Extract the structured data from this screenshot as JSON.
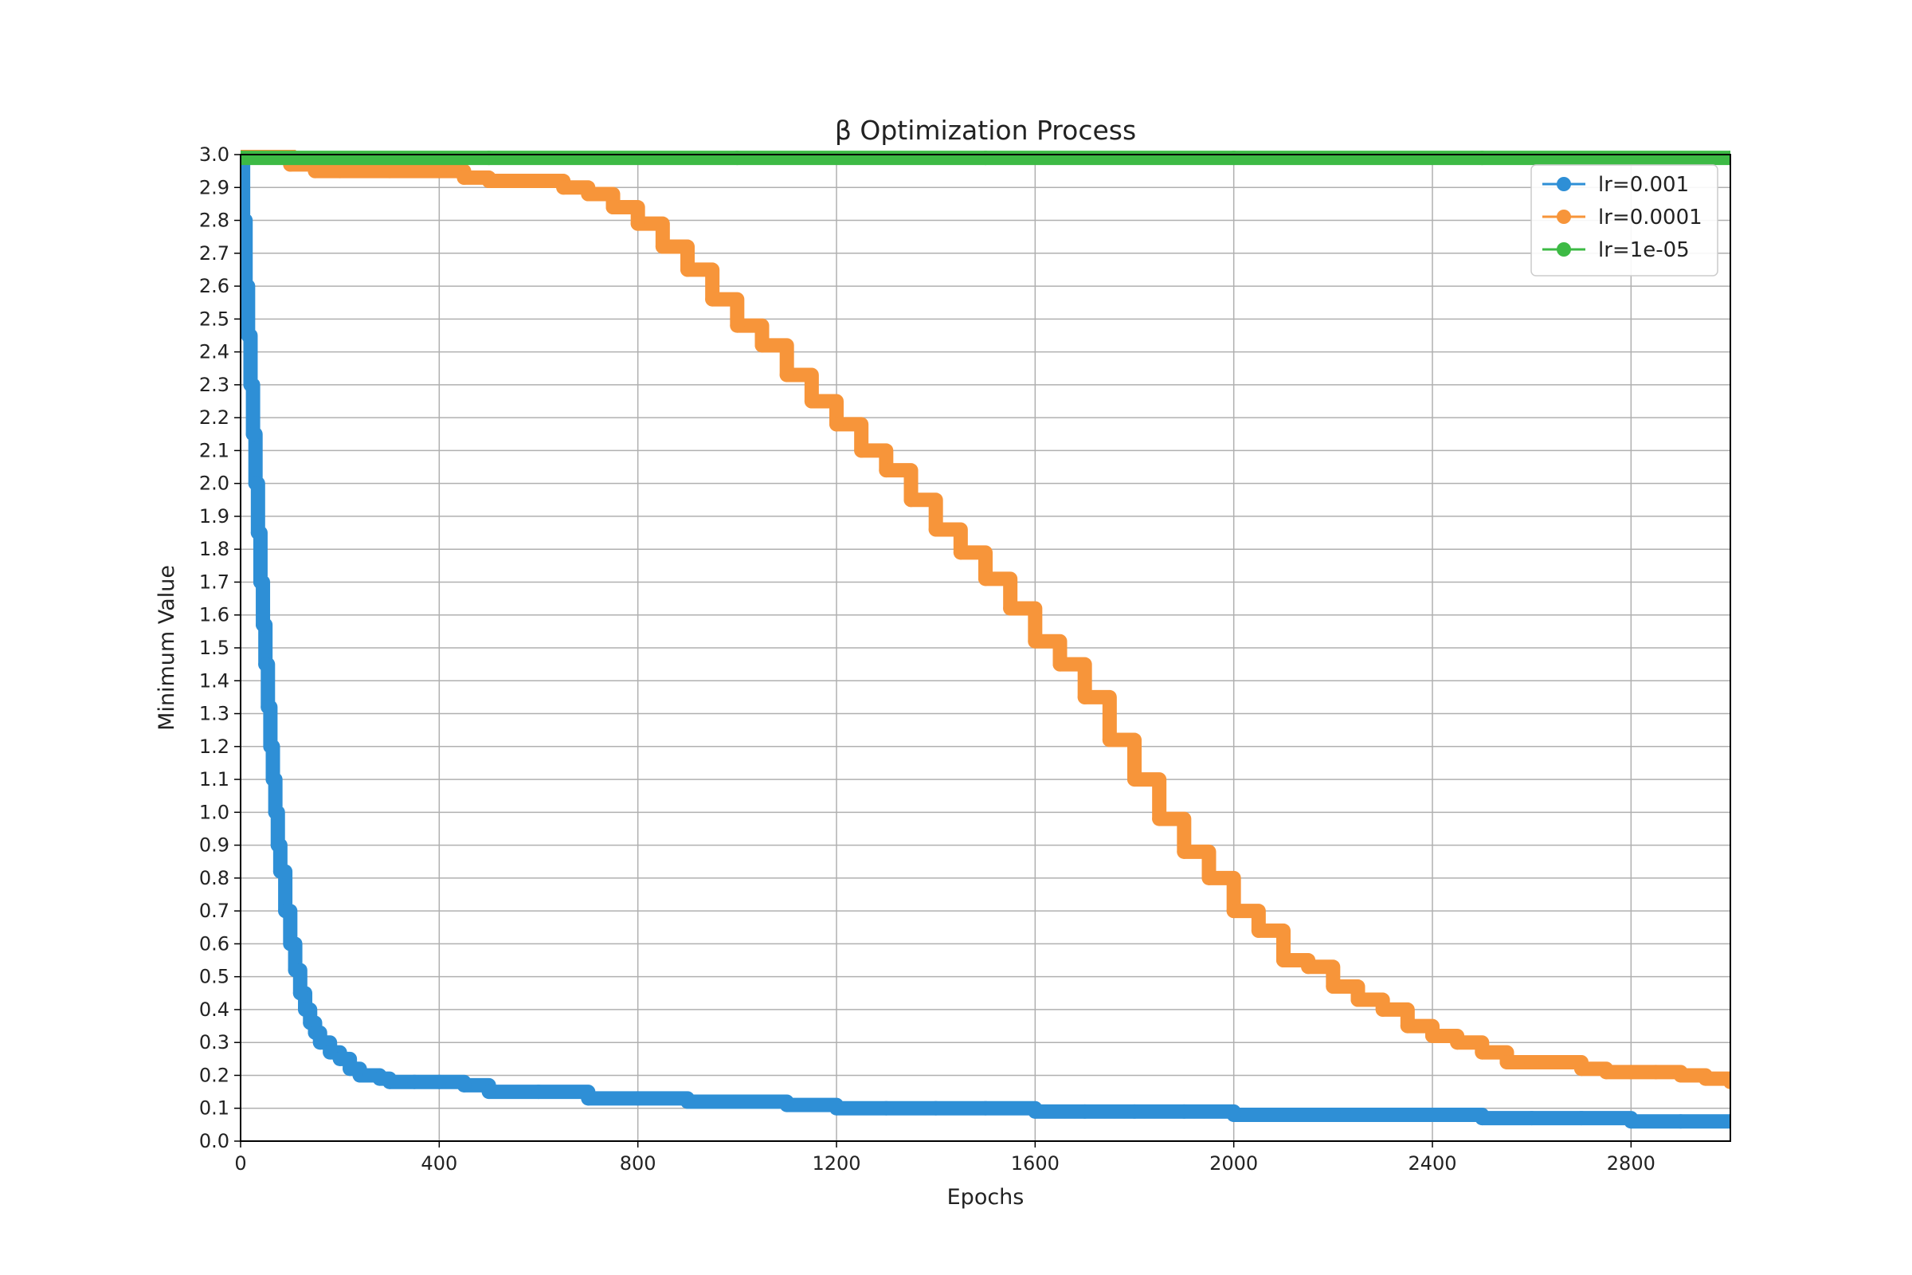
{
  "chart_data": {
    "type": "line",
    "title": "β Optimization Process",
    "xlabel": "Epochs",
    "ylabel": "Minimum Value",
    "xlim": [
      0,
      3000
    ],
    "ylim": [
      0.0,
      3.0
    ],
    "xticks": [
      0,
      400,
      800,
      1200,
      1600,
      2000,
      2400,
      2800
    ],
    "yticks": [
      0.0,
      0.1,
      0.2,
      0.3,
      0.4,
      0.5,
      0.6,
      0.7,
      0.8,
      0.9,
      1.0,
      1.1,
      1.2,
      1.3,
      1.4,
      1.5,
      1.6,
      1.7,
      1.8,
      1.9,
      2.0,
      2.1,
      2.2,
      2.3,
      2.4,
      2.5,
      2.6,
      2.7,
      2.8,
      2.9,
      3.0
    ],
    "grid": true,
    "legend_position": "top-right",
    "series": [
      {
        "name": "lr=0.001",
        "color": "#2e8fd6",
        "marker": "circle",
        "x": [
          0,
          5,
          10,
          15,
          20,
          25,
          30,
          35,
          40,
          45,
          50,
          55,
          60,
          65,
          70,
          75,
          80,
          90,
          100,
          110,
          120,
          130,
          140,
          150,
          160,
          180,
          200,
          220,
          240,
          260,
          280,
          300,
          350,
          400,
          450,
          500,
          600,
          700,
          800,
          900,
          1000,
          1100,
          1200,
          1300,
          1400,
          1500,
          1600,
          1700,
          1800,
          1900,
          2000,
          2100,
          2200,
          2300,
          2400,
          2500,
          2600,
          2700,
          2800,
          2900,
          3000
        ],
        "y": [
          2.98,
          2.8,
          2.6,
          2.45,
          2.3,
          2.15,
          2.0,
          1.85,
          1.7,
          1.57,
          1.45,
          1.32,
          1.2,
          1.1,
          1.0,
          0.9,
          0.82,
          0.7,
          0.6,
          0.52,
          0.45,
          0.4,
          0.36,
          0.33,
          0.3,
          0.27,
          0.25,
          0.22,
          0.2,
          0.2,
          0.19,
          0.18,
          0.18,
          0.18,
          0.17,
          0.15,
          0.15,
          0.13,
          0.13,
          0.12,
          0.12,
          0.11,
          0.1,
          0.1,
          0.1,
          0.1,
          0.09,
          0.09,
          0.09,
          0.09,
          0.08,
          0.08,
          0.08,
          0.08,
          0.08,
          0.07,
          0.07,
          0.07,
          0.06,
          0.06,
          0.06
        ]
      },
      {
        "name": "lr=0.0001",
        "color": "#f7953a",
        "marker": "circle",
        "x": [
          0,
          50,
          100,
          150,
          200,
          300,
          400,
          450,
          500,
          600,
          650,
          700,
          750,
          800,
          850,
          900,
          950,
          1000,
          1050,
          1100,
          1150,
          1200,
          1250,
          1300,
          1350,
          1400,
          1450,
          1500,
          1550,
          1600,
          1650,
          1700,
          1750,
          1800,
          1850,
          1900,
          1950,
          2000,
          2050,
          2100,
          2150,
          2200,
          2250,
          2300,
          2350,
          2400,
          2450,
          2500,
          2550,
          2600,
          2650,
          2700,
          2750,
          2800,
          2850,
          2900,
          2950,
          3000
        ],
        "y": [
          3.0,
          3.0,
          2.97,
          2.95,
          2.95,
          2.95,
          2.95,
          2.93,
          2.92,
          2.92,
          2.9,
          2.88,
          2.84,
          2.79,
          2.72,
          2.65,
          2.56,
          2.48,
          2.42,
          2.33,
          2.25,
          2.18,
          2.1,
          2.04,
          1.95,
          1.86,
          1.79,
          1.71,
          1.62,
          1.52,
          1.45,
          1.35,
          1.22,
          1.1,
          0.98,
          0.88,
          0.8,
          0.7,
          0.64,
          0.55,
          0.53,
          0.47,
          0.43,
          0.4,
          0.35,
          0.32,
          0.3,
          0.27,
          0.24,
          0.24,
          0.24,
          0.22,
          0.21,
          0.21,
          0.21,
          0.2,
          0.19,
          0.18
        ]
      },
      {
        "name": "lr=1e-05",
        "color": "#3dba45",
        "marker": "circle",
        "x": [
          0,
          500,
          1000,
          1500,
          2000,
          2500,
          3000
        ],
        "y": [
          2.99,
          2.99,
          2.99,
          2.99,
          2.99,
          2.99,
          2.99
        ]
      }
    ]
  }
}
